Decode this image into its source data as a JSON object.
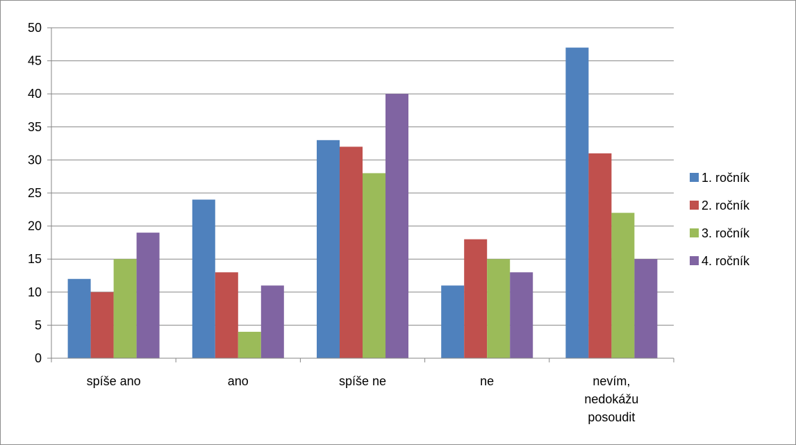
{
  "chart_data": {
    "type": "bar",
    "title": "",
    "xlabel": "",
    "ylabel": "",
    "ylim": [
      0,
      50
    ],
    "ytick_step": 5,
    "grid": true,
    "legend_position": "right",
    "categories": [
      [
        "spíše ano"
      ],
      [
        "ano"
      ],
      [
        "spíše ne"
      ],
      [
        "ne"
      ],
      [
        "nevím,",
        "nedokážu",
        "posoudit"
      ]
    ],
    "series": [
      {
        "name": "1. ročník",
        "color": "#4f81bd",
        "values": [
          12,
          24,
          33,
          11,
          47
        ]
      },
      {
        "name": "2. ročník",
        "color": "#c0504d",
        "values": [
          10,
          13,
          32,
          18,
          31
        ]
      },
      {
        "name": "3. ročník",
        "color": "#9bbb59",
        "values": [
          15,
          4,
          28,
          15,
          22
        ]
      },
      {
        "name": "4. ročník",
        "color": "#8064a2",
        "values": [
          19,
          11,
          40,
          13,
          15
        ]
      }
    ]
  }
}
